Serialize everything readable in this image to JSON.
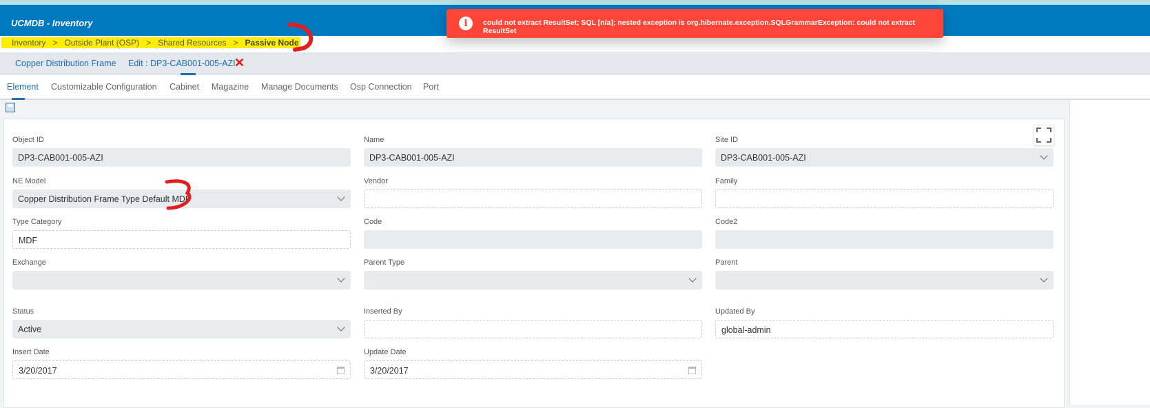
{
  "app": {
    "title": "UCMDB - Inventory"
  },
  "breadcrumb": [
    "Inventory",
    ">",
    "Outside Plant (OSP)",
    ">",
    "Shared Resources",
    ">",
    "Passive Node"
  ],
  "tabs": {
    "main": "Copper Distribution Frame",
    "edit": "Edit : DP3-CAB001-005-AZI",
    "close": "✕"
  },
  "subtabs": [
    "Element",
    "Customizable Configuration",
    "Cabinet",
    "Magazine",
    "Manage Documents",
    "Osp Connection",
    "Port"
  ],
  "toast": {
    "icon": "i",
    "message": "could not extract ResultSet; SQL [n/a]; nested exception is org.hibernate.exception.SQLGrammarException: could not extract ResultSet",
    "color": "#ff4438"
  },
  "fields": [
    {
      "label": "Object ID",
      "value": "DP3-CAB001-005-AZI",
      "style": "ro"
    },
    {
      "label": "Name",
      "value": "DP3-CAB001-005-AZI",
      "style": "ro"
    },
    {
      "label": "Site ID",
      "value": "DP3-CAB001-005-AZI",
      "style": "ro",
      "dropdown": true
    },
    {
      "label": "NE Model",
      "value": "Copper Distribution Frame Type Default MDF",
      "style": "ro",
      "dropdown": true
    },
    {
      "label": "Vendor",
      "value": "",
      "style": "ed"
    },
    {
      "label": "Family",
      "value": "",
      "style": "ed"
    },
    {
      "label": "Type Category",
      "value": "MDF",
      "style": "ed"
    },
    {
      "label": "Code",
      "value": "",
      "style": "ro"
    },
    {
      "label": "Code2",
      "value": "",
      "style": "ro"
    },
    {
      "label": "Exchange",
      "value": "",
      "style": "ro",
      "dropdown": true
    },
    {
      "label": "Parent Type",
      "value": "",
      "style": "ro",
      "dropdown": true
    },
    {
      "label": "Parent",
      "value": "",
      "style": "ro",
      "dropdown": true
    },
    {
      "label": "Status",
      "value": "Active",
      "style": "ro",
      "dropdown": true
    },
    {
      "label": "Inserted By",
      "value": "",
      "style": "ed"
    },
    {
      "label": "Updated By",
      "value": "global-admin",
      "style": "ed"
    },
    {
      "label": "Insert Date",
      "value": "3/20/2017",
      "style": "ed",
      "calendar": true
    },
    {
      "label": "Update Date",
      "value": "3/20/2017",
      "style": "ed",
      "calendar": true
    }
  ]
}
